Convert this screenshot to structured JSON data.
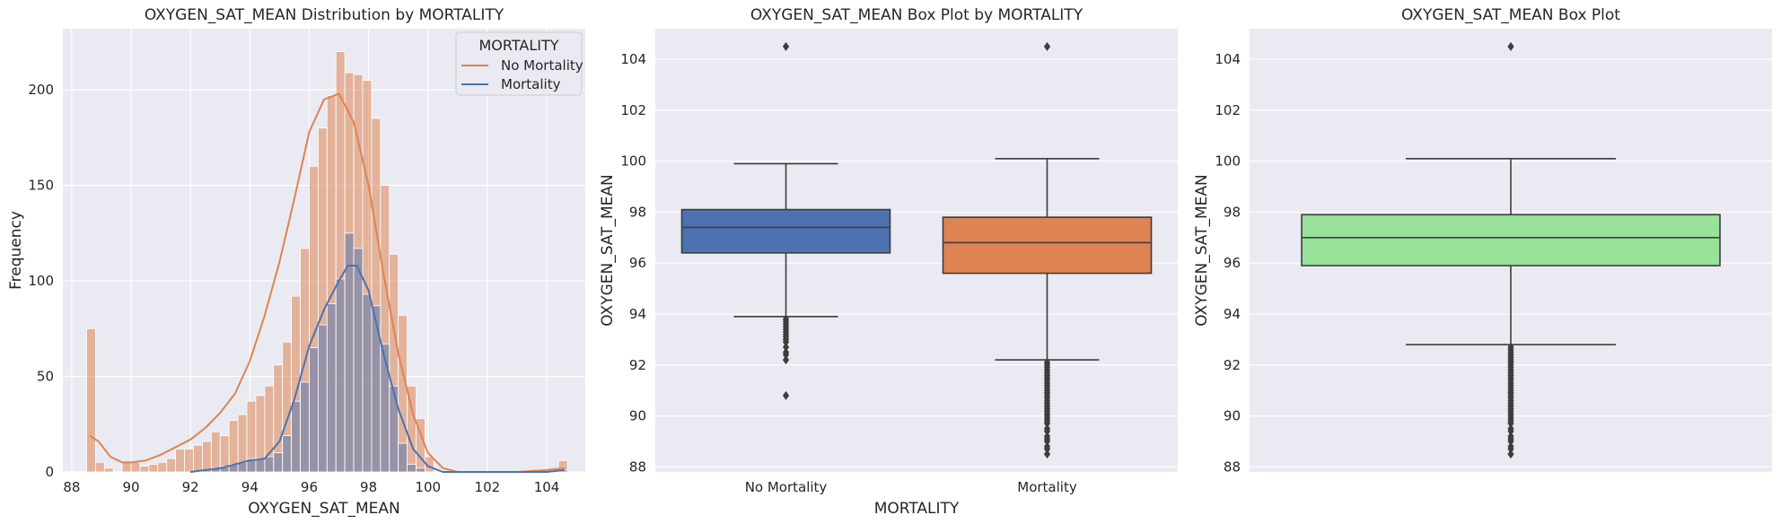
{
  "colors": {
    "orange": "#dd8452",
    "blue": "#4c72b0",
    "green": "#98e29a",
    "overlap": "#8f8aa8",
    "median": "#3d3d3d",
    "background": "#eaeaf2"
  },
  "chart_data": [
    {
      "type": "histogram",
      "title": "OXYGEN_SAT_MEAN Distribution by MORTALITY",
      "xlabel": "OXYGEN_SAT_MEAN",
      "ylabel": "Frequency",
      "xlim": [
        87.7,
        105.3
      ],
      "ylim": [
        0,
        232
      ],
      "xticks": [
        88,
        90,
        92,
        94,
        96,
        98,
        100,
        102,
        104
      ],
      "yticks": [
        0,
        50,
        100,
        150,
        200
      ],
      "bin_edges": [
        88.5,
        88.8,
        89.1,
        89.4,
        89.7,
        90.0,
        90.3,
        90.6,
        90.9,
        91.2,
        91.5,
        91.8,
        92.1,
        92.4,
        92.7,
        93.0,
        93.3,
        93.6,
        93.9,
        94.2,
        94.5,
        94.8,
        95.1,
        95.4,
        95.7,
        96.0,
        96.3,
        96.6,
        96.9,
        97.2,
        97.5,
        97.8,
        98.1,
        98.4,
        98.7,
        99.0,
        99.3,
        99.6,
        99.9,
        100.2,
        100.5,
        100.8,
        101.1,
        101.4,
        101.7,
        102.0,
        102.3,
        102.6,
        102.9,
        103.2,
        103.5,
        103.8,
        104.1,
        104.4,
        104.7
      ],
      "legend": {
        "title": "MORTALITY",
        "position": "upper-right",
        "entries": [
          "No Mortality",
          "Mortality"
        ]
      },
      "series": [
        {
          "name": "No Mortality",
          "hist_values": [
            75,
            5,
            2,
            0,
            5,
            5,
            3,
            4,
            5,
            7,
            12,
            12,
            14,
            16,
            21,
            19,
            27,
            30,
            37,
            40,
            45,
            56,
            68,
            92,
            117,
            160,
            180,
            197,
            220,
            209,
            208,
            205,
            185,
            150,
            114,
            82,
            45,
            28,
            8,
            0,
            0,
            0,
            0,
            0,
            0,
            0,
            0,
            0,
            0,
            0,
            0,
            0,
            0,
            6
          ],
          "kde_x": [
            88.6,
            88.9,
            89.3,
            89.7,
            90.0,
            90.5,
            91.0,
            91.5,
            92.0,
            92.5,
            93.0,
            93.5,
            94.0,
            94.5,
            95.0,
            95.5,
            96.0,
            96.5,
            97.0,
            97.5,
            98.0,
            98.5,
            99.0,
            99.5,
            100.0,
            100.5,
            101.0,
            101.5,
            102.0,
            103.0,
            104.0,
            104.6
          ],
          "kde_y": [
            19,
            16,
            8,
            5,
            5,
            6,
            9,
            13,
            17,
            23,
            31,
            41,
            58,
            82,
            110,
            143,
            178,
            195,
            198,
            183,
            150,
            104,
            62,
            30,
            10,
            2,
            0,
            0,
            0,
            0,
            1,
            2
          ]
        },
        {
          "name": "Mortality",
          "hist_values": [
            0,
            0,
            0,
            0,
            0,
            0,
            0,
            0,
            0,
            0,
            0,
            0,
            0,
            1,
            2,
            3,
            4,
            5,
            7,
            7,
            8,
            10,
            19,
            37,
            47,
            65,
            77,
            88,
            101,
            125,
            117,
            93,
            87,
            67,
            45,
            15,
            4,
            2,
            0,
            0,
            0,
            0,
            0,
            0,
            0,
            0,
            0,
            0,
            0,
            0,
            0,
            0,
            0,
            1
          ],
          "kde_x": [
            92.0,
            92.5,
            93.0,
            93.5,
            94.0,
            94.5,
            95.0,
            95.5,
            96.0,
            96.5,
            97.0,
            97.3,
            97.6,
            98.0,
            98.5,
            99.0,
            99.5,
            100.0,
            100.5,
            101.0,
            102.0,
            103.0,
            104.0,
            104.6
          ],
          "kde_y": [
            0,
            1,
            2,
            4,
            6,
            7,
            16,
            38,
            66,
            85,
            100,
            108,
            108,
            95,
            62,
            33,
            12,
            3,
            0,
            0,
            0,
            0,
            0,
            1
          ]
        }
      ]
    },
    {
      "type": "box",
      "title": "OXYGEN_SAT_MEAN Box Plot by MORTALITY",
      "xlabel": "MORTALITY",
      "ylabel": "OXYGEN_SAT_MEAN",
      "ylim": [
        87.8,
        105.2
      ],
      "yticks": [
        88,
        90,
        92,
        94,
        96,
        98,
        100,
        102,
        104
      ],
      "categories": [
        "No Mortality",
        "Mortality"
      ],
      "boxes": [
        {
          "category": "No Mortality",
          "whisker_low": 93.9,
          "q1": 96.4,
          "median": 97.4,
          "q3": 98.1,
          "whisker_high": 99.9,
          "outliers": [
            104.5,
            93.8,
            93.7,
            93.6,
            93.5,
            93.4,
            93.3,
            93.2,
            93.1,
            93.0,
            92.9,
            92.7,
            92.5,
            92.4,
            92.2,
            90.8
          ]
        },
        {
          "category": "Mortality",
          "whisker_low": 92.2,
          "q1": 95.6,
          "median": 96.8,
          "q3": 97.8,
          "whisker_high": 100.1,
          "outliers": [
            104.5,
            92.1,
            92.0,
            91.9,
            91.8,
            91.7,
            91.6,
            91.5,
            91.4,
            91.3,
            91.2,
            91.1,
            91.0,
            90.9,
            90.8,
            90.7,
            90.6,
            90.5,
            90.4,
            90.3,
            90.2,
            90.1,
            90.0,
            89.9,
            89.8,
            89.7,
            89.5,
            89.4,
            89.2,
            89.1,
            89.0,
            88.8,
            88.7,
            88.5
          ]
        }
      ]
    },
    {
      "type": "box",
      "title": "OXYGEN_SAT_MEAN Box Plot",
      "ylabel": "OXYGEN_SAT_MEAN",
      "ylim": [
        87.8,
        105.2
      ],
      "yticks": [
        88,
        90,
        92,
        94,
        96,
        98,
        100,
        102,
        104
      ],
      "boxes": [
        {
          "whisker_low": 92.8,
          "q1": 95.9,
          "median": 97.0,
          "q3": 97.9,
          "whisker_high": 100.1,
          "outliers": [
            104.5,
            92.7,
            92.6,
            92.5,
            92.4,
            92.3,
            92.2,
            92.1,
            92.0,
            91.9,
            91.8,
            91.7,
            91.6,
            91.5,
            91.4,
            91.3,
            91.2,
            91.1,
            91.0,
            90.9,
            90.8,
            90.7,
            90.6,
            90.5,
            90.4,
            90.3,
            90.2,
            90.1,
            90.0,
            89.9,
            89.8,
            89.7,
            89.5,
            89.4,
            89.2,
            89.1,
            89.0,
            88.8,
            88.7,
            88.5
          ]
        }
      ]
    }
  ]
}
